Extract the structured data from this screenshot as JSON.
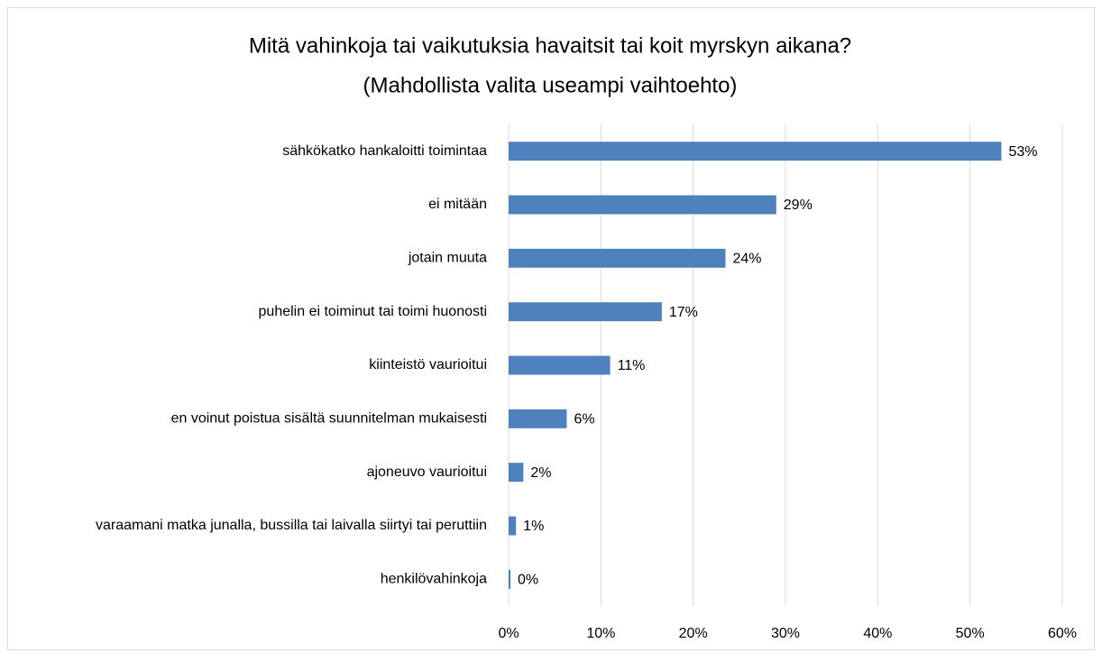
{
  "chart_data": {
    "type": "barh",
    "title": "Mitä vahinkoja tai vaikutuksia havaitsit tai koit myrskyn aikana?",
    "subtitle": "(Mahdollista valita useampi vaihtoehto)",
    "categories": [
      "sähkökatko hankaloitti toimintaa",
      "ei mitään",
      "jotain muuta",
      "puhelin ei toiminut tai toimi huonosti",
      "kiinteistö vaurioitui",
      "en voinut poistua sisältä suunnitelman mukaisesti",
      "ajoneuvo vaurioitui",
      "varaamani matka junalla, bussilla tai laivalla siirtyi tai peruttiin",
      "henkilövahinkoja"
    ],
    "values": [
      53.4,
      29,
      23.5,
      16.6,
      11,
      6.3,
      1.6,
      0.8,
      0.2
    ],
    "value_labels": [
      "53%",
      "29%",
      "24%",
      "17%",
      "11%",
      "6%",
      "2%",
      "1%",
      "0%"
    ],
    "color": "#4f81bd",
    "xlim": [
      0,
      60
    ],
    "xticks": [
      {
        "value": 0,
        "label": "0%"
      },
      {
        "value": 10,
        "label": "10%"
      },
      {
        "value": 20,
        "label": "20%"
      },
      {
        "value": 30,
        "label": "30%"
      },
      {
        "value": 40,
        "label": "40%"
      },
      {
        "value": 50,
        "label": "50%"
      },
      {
        "value": 60,
        "label": "60%"
      }
    ],
    "grid": true
  }
}
